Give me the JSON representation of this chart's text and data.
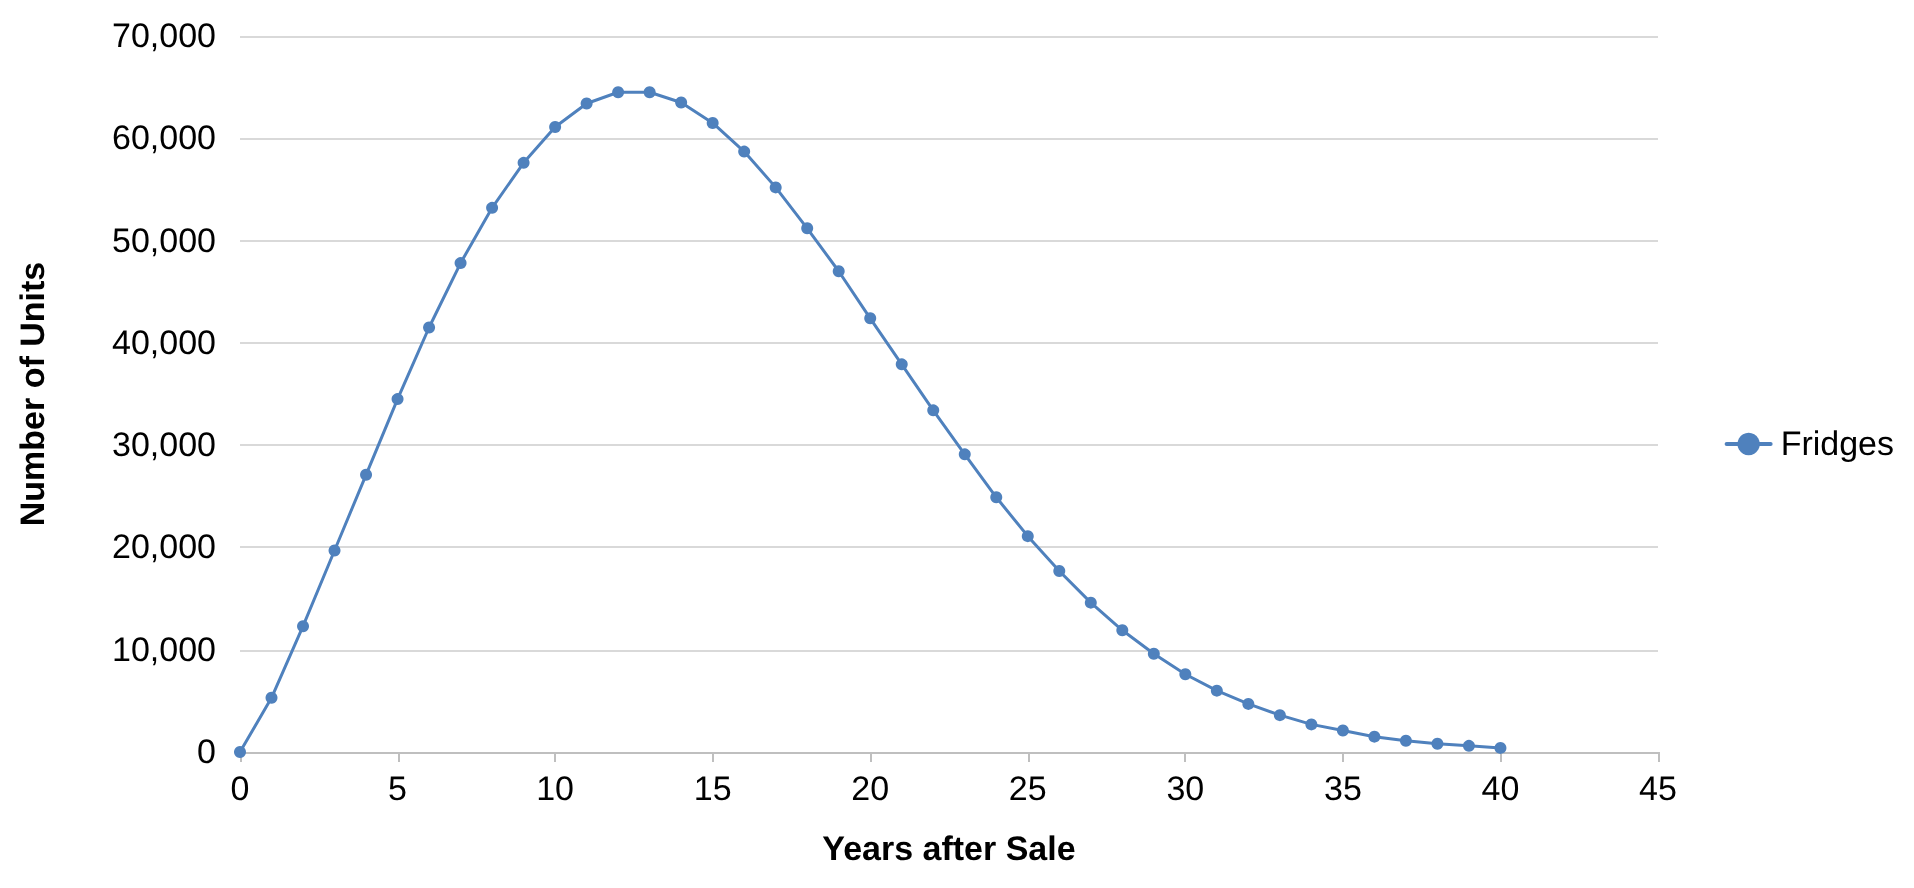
{
  "chart_data": {
    "type": "line",
    "xlabel": "Years after Sale",
    "ylabel": "Number of Units",
    "x": [
      0,
      1,
      2,
      3,
      4,
      5,
      6,
      7,
      8,
      9,
      10,
      11,
      12,
      13,
      14,
      15,
      16,
      17,
      18,
      19,
      20,
      21,
      22,
      23,
      24,
      25,
      26,
      27,
      28,
      29,
      30,
      31,
      32,
      33,
      34,
      35,
      36,
      37,
      38,
      39,
      40
    ],
    "series": [
      {
        "name": "Fridges",
        "color": "#4f81bd",
        "values": [
          0,
          5300,
          12300,
          19700,
          27100,
          34500,
          41500,
          47800,
          53200,
          57600,
          61100,
          63400,
          64500,
          64500,
          63500,
          61500,
          58700,
          55200,
          51200,
          47000,
          42400,
          37900,
          33400,
          29100,
          24900,
          21100,
          17700,
          14600,
          11900,
          9600,
          7600,
          6000,
          4700,
          3600,
          2700,
          2100,
          1500,
          1100,
          800,
          600,
          400
        ]
      }
    ],
    "xlim": [
      0,
      45
    ],
    "xticks": [
      0,
      5,
      10,
      15,
      20,
      25,
      30,
      35,
      40,
      45
    ],
    "ylim": [
      0,
      70000
    ],
    "yticks": [
      {
        "value": 0,
        "label": "0"
      },
      {
        "value": 10000,
        "label": "10,000"
      },
      {
        "value": 20000,
        "label": "20,000"
      },
      {
        "value": 30000,
        "label": "30,000"
      },
      {
        "value": 40000,
        "label": "40,000"
      },
      {
        "value": 50000,
        "label": "50,000"
      },
      {
        "value": 60000,
        "label": "60,000"
      },
      {
        "value": 70000,
        "label": "70,000"
      }
    ],
    "grid": "y",
    "legend": "right",
    "marker": "circle",
    "line_style": "solid"
  }
}
